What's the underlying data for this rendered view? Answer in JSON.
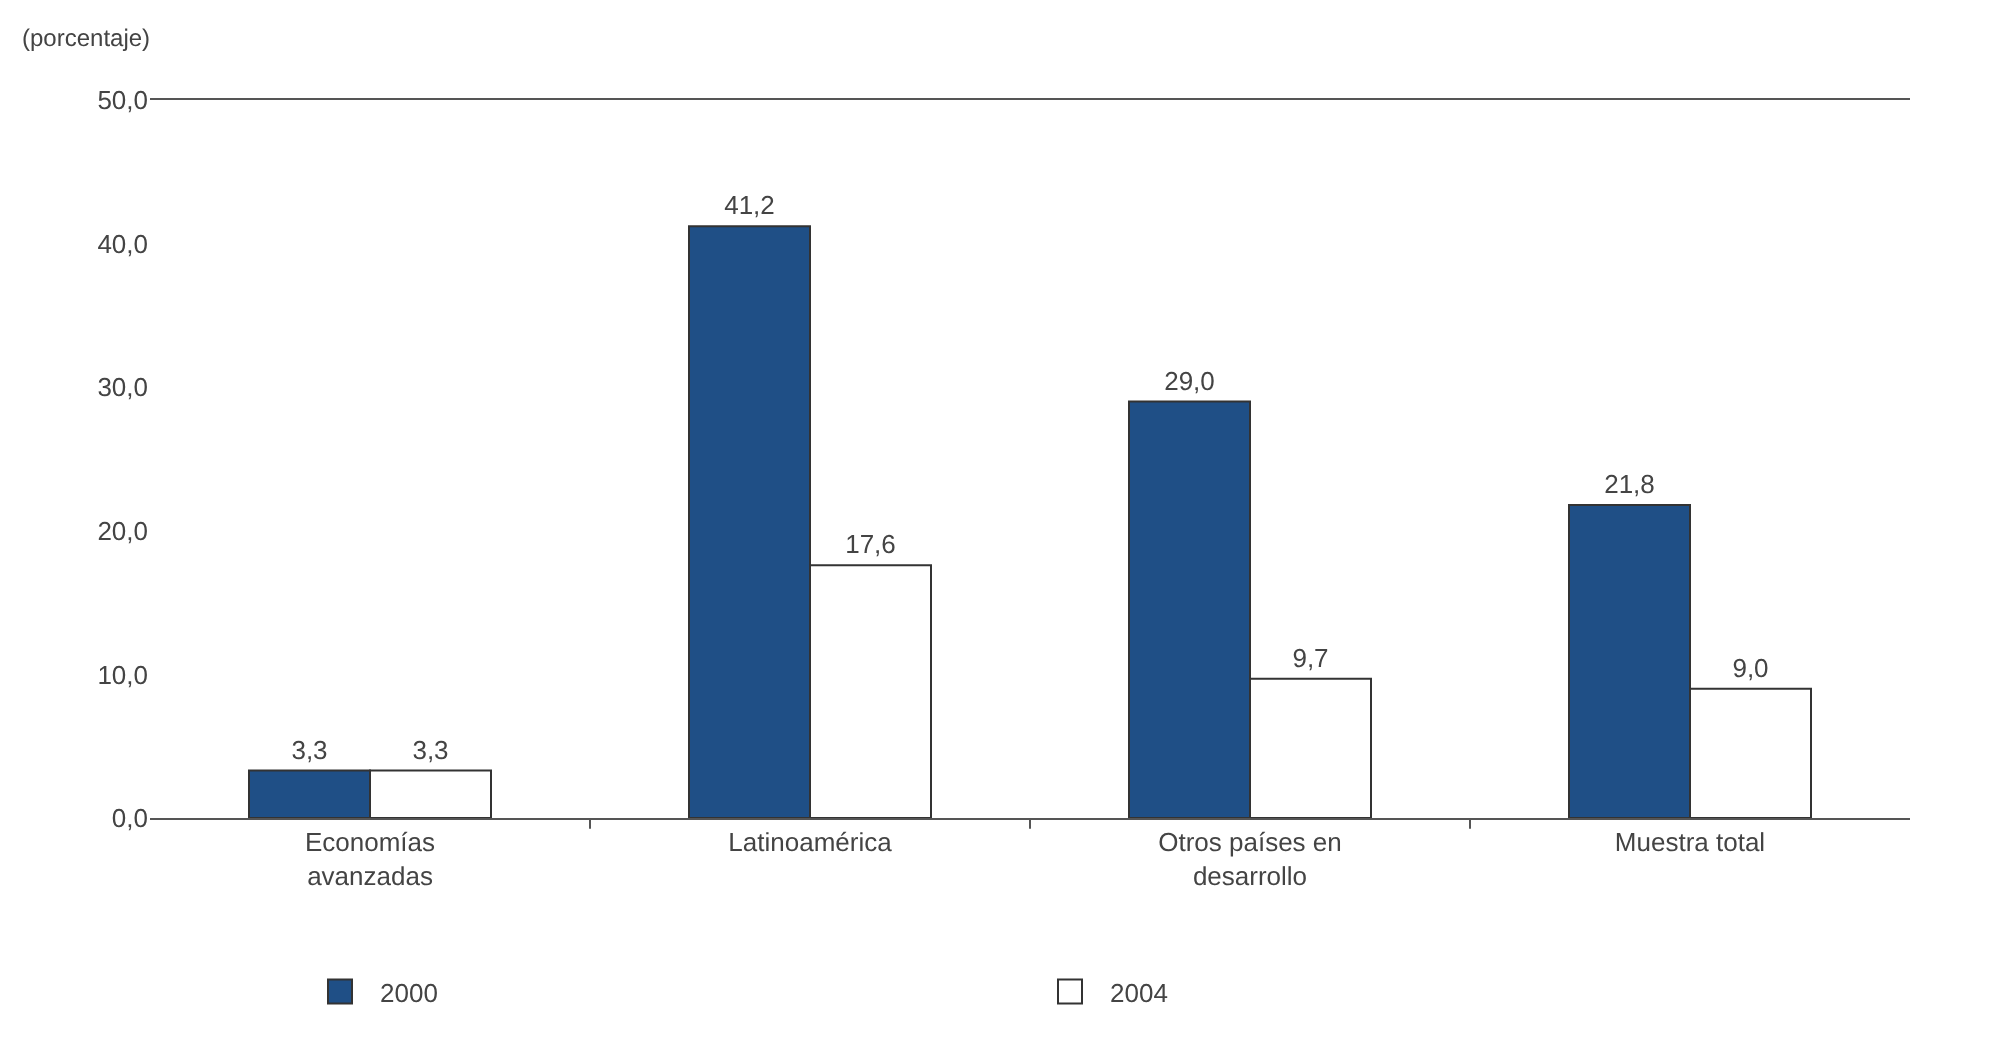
{
  "chart_data": {
    "type": "bar",
    "ylabel": "(porcentaje)",
    "categories": [
      "Economías avanzadas",
      "Latinoamérica",
      "Otros países en desarrollo",
      "Muestra total"
    ],
    "series": [
      {
        "name": "2000",
        "color": "#1f4f86",
        "values": [
          3.3,
          41.2,
          29.0,
          21.8
        ],
        "value_labels": [
          "3,3",
          "41,2",
          "29,0",
          "21,8"
        ]
      },
      {
        "name": "2004",
        "color": "#ffffff",
        "values": [
          3.3,
          17.6,
          9.7,
          9.0
        ],
        "value_labels": [
          "3,3",
          "17,6",
          "9,7",
          "9,0"
        ]
      }
    ],
    "ylim": [
      0,
      50
    ],
    "yticks": [
      {
        "value": 0,
        "label": "0,0"
      },
      {
        "value": 10,
        "label": "10,0"
      },
      {
        "value": 20,
        "label": "20,0"
      },
      {
        "value": 30,
        "label": "30,0"
      },
      {
        "value": 40,
        "label": "40,0"
      },
      {
        "value": 50,
        "label": "50,0"
      }
    ],
    "legend": "bottom"
  }
}
